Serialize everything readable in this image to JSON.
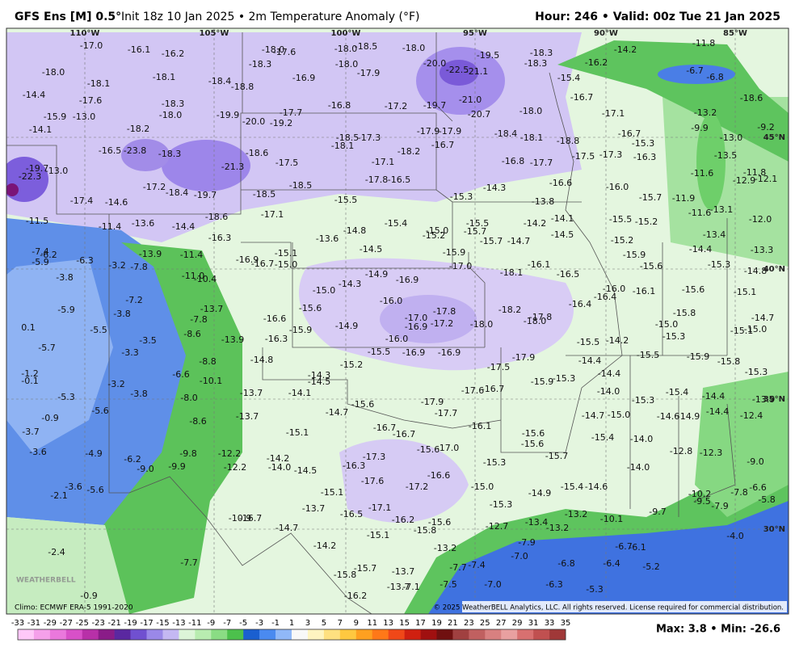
{
  "header": {
    "model": "GFS Ens [M] 0.5°",
    "run": "Init 18z 10 Jan 2025 • 2m Temperature Anomaly (°F)",
    "valid": "Hour: 246 • Valid: 00z Tue 21 Jan 2025"
  },
  "map": {
    "lon_labels": [
      "110°W",
      "105°W",
      "100°W",
      "95°W",
      "90°W",
      "85°W"
    ],
    "lat_labels": [
      "45°N",
      "40°N",
      "35°N",
      "30°N"
    ],
    "logo": "WEATHERBELL",
    "values": [
      "-17.0",
      "-16.1",
      "-16.2",
      "-18.0",
      "-18.1",
      "-18.1",
      "-18.4",
      "-18.8",
      "-14.4",
      "-17.6",
      "-18.3",
      "-18.0",
      "-19.9",
      "-15.9",
      "-13.0",
      "-14.1",
      "-18.2",
      "-20.0",
      "-19.2",
      "-17.7",
      "-16.8",
      "-17.2",
      "-19.7",
      "-18.0",
      "-17.6",
      "-18.3",
      "-18.0",
      "-18.5",
      "-18.0",
      "-18.0",
      "-17.9",
      "-16.9",
      "-20.0",
      "-22.5",
      "-21.1",
      "-19.5",
      "-18.3",
      "-18.3",
      "-16.2",
      "-14.2",
      "-11.8",
      "-6.7",
      "-6.8",
      "-15.4",
      "-16.7",
      "-21.0",
      "-20.7",
      "-18.0",
      "-17.1",
      "-13.2",
      "-9.9",
      "-13.0",
      "-9.2",
      "-18.6",
      "-17.9",
      "-17.9",
      "-16.7",
      "-18.4",
      "-18.1",
      "-18.8",
      "-16.7",
      "-15.3",
      "-16.3",
      "-17.5",
      "-17.3",
      "-16.8",
      "-17.7",
      "-13.5",
      "-11.6",
      "-11.8",
      "-12.9",
      "-12.1",
      "-18.5",
      "-17.3",
      "-18.1",
      "-18.2",
      "-17.1",
      "-17.5",
      "-18.6",
      "-16.5",
      "-23.8",
      "-18.3",
      "-21.3",
      "-19.7",
      "-22.3",
      "-13.0",
      "-17.2",
      "-18.4",
      "-19.7",
      "-17.4",
      "-14.6",
      "-18.5",
      "-18.5",
      "-17.8",
      "-16.5",
      "-15.3",
      "-14.3",
      "-13.8",
      "-16.6",
      "-16.0",
      "-15.7",
      "-11.9",
      "-11.6",
      "-13.1",
      "-12.0",
      "-15.5",
      "-17.1",
      "-18.6",
      "-11.5",
      "-11.4",
      "-13.6",
      "-14.4",
      "-16.3",
      "-15.4",
      "-15.0",
      "-15.2",
      "-15.5",
      "-15.7",
      "-14.2",
      "-14.1",
      "-14.5",
      "-15.7",
      "-14.7",
      "-15.5",
      "-15.2",
      "-13.4",
      "-13.6",
      "-14.8",
      "-14.5",
      "-15.2",
      "-15.9",
      "-14.4",
      "-13.3",
      "-15.1",
      "-16.9",
      "-16.7",
      "-15.0",
      "-15.9",
      "-17.0",
      "-16.1",
      "-15.6",
      "-15.3",
      "-14.8",
      "-7.4",
      "-5.9",
      "-6.2",
      "-6.3",
      "-3.2",
      "-7.8",
      "-13.9",
      "-11.4",
      "-11.0",
      "-10.4",
      "-3.8",
      "-14.9",
      "-14.3",
      "-16.9",
      "-18.1",
      "-16.5",
      "-15.0",
      "-16.0",
      "-17.8",
      "-18.2",
      "-17.0",
      "-16.9",
      "-17.2",
      "-18.0",
      "-17.8",
      "-18.0",
      "-16.4",
      "-16.0",
      "-16.1",
      "-16.4",
      "-15.6",
      "-15.1",
      "-15.6",
      "-14.9",
      "-16.6",
      "-15.9",
      "-16.3",
      "-13.7",
      "-7.8",
      "-8.6",
      "-13.9",
      "-7.2",
      "-5.9",
      "-3.8",
      "-5.5",
      "-3.5",
      "0.1",
      "-5.7",
      "-15.0",
      "-15.3",
      "-15.8",
      "-14.7",
      "-15.1",
      "-15.0",
      "-15.5",
      "-14.2",
      "-16.0",
      "-15.5",
      "-16.9",
      "-16.9",
      "-15.5",
      "-15.9",
      "-15.8",
      "-14.4",
      "-14.4",
      "-17.9",
      "-17.5",
      "-15.9",
      "-15.3",
      "-15.3",
      "-3.3",
      "-8.8",
      "-14.8",
      "-15.2",
      "-14.3",
      "-14.5",
      "-6.6",
      "-10.1",
      "-1.2",
      "-0.1",
      "-14.0",
      "-3.2",
      "-3.8",
      "-8.0",
      "-13.7",
      "-14.1",
      "-17.6",
      "-16.7",
      "-5.3",
      "-15.3",
      "-15.4",
      "-14.4",
      "-13.9",
      "-14.7",
      "-15.6",
      "-17.9",
      "-17.7",
      "-14.7",
      "-15.0",
      "-14.6",
      "-14.9",
      "-14.4",
      "-12.4",
      "-5.6",
      "-13.7",
      "-0.9",
      "-8.6",
      "-3.7",
      "-16.7",
      "-16.7",
      "-16.1",
      "-15.1",
      "-15.6",
      "-15.4",
      "-14.0",
      "-15.6",
      "-15.6",
      "-17.0",
      "-3.6",
      "-4.9",
      "-9.8",
      "-12.2",
      "-6.2",
      "-9.0",
      "-9.9",
      "-12.2",
      "-14.2",
      "-17.3",
      "-15.7",
      "-12.8",
      "-12.3",
      "-9.0",
      "-14.0",
      "-14.5",
      "-16.3",
      "-15.3",
      "-14.0",
      "-16.6",
      "-17.6",
      "-17.2",
      "-3.6",
      "-5.6",
      "-2.1",
      "-15.1",
      "-15.0",
      "-15.4",
      "-14.6",
      "-14.9",
      "-10.2",
      "-9.5",
      "-7.8",
      "-6.6",
      "-5.8",
      "-7.9",
      "-15.3",
      "-13.7",
      "-17.1",
      "-9.7",
      "-16.5",
      "-10.9",
      "-16.7",
      "-16.2",
      "-13.4",
      "-13.2",
      "-15.6",
      "-15.8",
      "-12.7",
      "-13.2",
      "-10.1",
      "-14.7",
      "-15.1",
      "-7.9",
      "-6.7",
      "-6.1",
      "-4.0",
      "-2.4",
      "-14.2",
      "-13.2",
      "-7.0",
      "-7.7",
      "-7.7",
      "-7.4",
      "-6.8",
      "-6.4",
      "-5.2",
      "-15.7",
      "-13.7",
      "-15.8",
      "-13.7",
      "-7.1",
      "-7.5",
      "-7.0",
      "-6.3",
      "-5.3",
      "-16.2",
      "-0.9"
    ]
  },
  "footer": {
    "climo": "Climo: ECMWF ERA-5 1991-2020",
    "copyright": "© 2025 WeatherBELL Analytics, LLC. All rights reserved. License required for commercial distribution.",
    "stats": "Max: 3.8 • Min: -26.6",
    "colorbar": {
      "ticks": [
        -33,
        -31,
        -29,
        -27,
        -25,
        -23,
        -21,
        -19,
        -17,
        -15,
        -13,
        -11,
        -9,
        -7,
        -5,
        -3,
        -1,
        1,
        3,
        5,
        7,
        9,
        11,
        13,
        15,
        17,
        19,
        21,
        23,
        25,
        27,
        29,
        31,
        33,
        35
      ],
      "colors": [
        "#ffc8f8",
        "#f5a0ea",
        "#ea78dc",
        "#d850c8",
        "#b830a8",
        "#8a1c88",
        "#5a28a0",
        "#7050d0",
        "#9a88e8",
        "#c4b8f2",
        "#dcf5d8",
        "#b8ecb0",
        "#8adc84",
        "#4cc04c",
        "#1a5fd0",
        "#4a8af0",
        "#90b8f8",
        "#f8f8f8",
        "#fff4c0",
        "#ffe080",
        "#ffc840",
        "#ffa020",
        "#ff7818",
        "#f04818",
        "#d02010",
        "#a01010",
        "#701010",
        "#a04040",
        "#c06060",
        "#d88080",
        "#e8a0a0",
        "#d87070",
        "#c05050",
        "#a03838"
      ]
    }
  }
}
